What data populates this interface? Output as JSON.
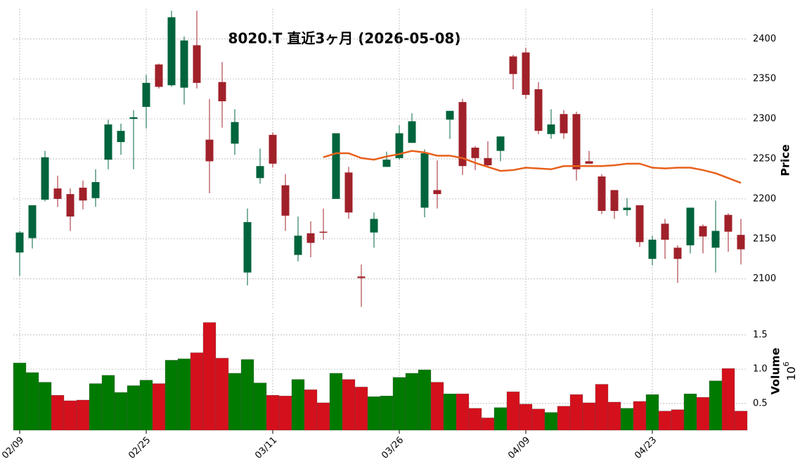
{
  "chart_data": [
    {
      "type": "candlestick",
      "title": "8020.T 直近3ヶ月 (2026-05-08)",
      "ylabel": "Price",
      "categories": [
        "02/09",
        null,
        null,
        null,
        null,
        null,
        null,
        null,
        null,
        null,
        "02/25",
        null,
        null,
        null,
        null,
        null,
        null,
        null,
        null,
        null,
        "03/11",
        null,
        null,
        null,
        null,
        null,
        null,
        null,
        null,
        null,
        "03/26",
        null,
        null,
        null,
        null,
        null,
        null,
        null,
        null,
        null,
        "04/09",
        null,
        null,
        null,
        null,
        null,
        null,
        null,
        null,
        null,
        "04/23",
        null,
        null,
        null,
        null,
        null,
        null,
        null
      ],
      "open": [
        2133,
        2151,
        2199,
        2213,
        2206,
        2214,
        2201,
        2249,
        2271,
        2300,
        2315,
        2368,
        2342,
        2339,
        2392,
        2274,
        2346,
        2269,
        2108,
        2226,
        2280,
        2217,
        2130,
        2157,
        2159,
        2200,
        2233,
        2103,
        2158,
        2240,
        2251,
        2270,
        2189,
        2211,
        2299,
        2321,
        2264,
        2251,
        2260,
        2378,
        2383,
        2337,
        2281,
        2306,
        2306,
        2247,
        2228,
        2211,
        2186,
        2192,
        2125,
        2169,
        2139,
        2142,
        2166,
        2139,
        2180,
        2155
      ],
      "high": [
        2160,
        2192,
        2260,
        2229,
        2213,
        2223,
        2237,
        2299,
        2294,
        2311,
        2355,
        2369,
        2435,
        2403,
        2435,
        2325,
        2371,
        2312,
        2188,
        2263,
        2283,
        2231,
        2178,
        2172,
        2188,
        2282,
        2240,
        2118,
        2183,
        2259,
        2292,
        2307,
        2262,
        2248,
        2310,
        2325,
        2266,
        2272,
        2278,
        2380,
        2389,
        2346,
        2312,
        2311,
        2309,
        2260,
        2231,
        2211,
        2201,
        2192,
        2154,
        2175,
        2142,
        2189,
        2168,
        2198,
        2182,
        2175
      ],
      "low": [
        2104,
        2138,
        2197,
        2190,
        2160,
        2187,
        2190,
        2237,
        2255,
        2237,
        2288,
        2338,
        2340,
        2318,
        2338,
        2207,
        2289,
        2255,
        2092,
        2219,
        2239,
        2160,
        2122,
        2127,
        2149,
        2200,
        2175,
        2065,
        2139,
        2240,
        2249,
        2270,
        2177,
        2188,
        2275,
        2230,
        2236,
        2239,
        2247,
        2337,
        2325,
        2281,
        2275,
        2275,
        2223,
        2244,
        2181,
        2175,
        2179,
        2140,
        2117,
        2125,
        2095,
        2132,
        2132,
        2108,
        2134,
        2118
      ],
      "close": [
        2158,
        2192,
        2252,
        2200,
        2178,
        2198,
        2221,
        2293,
        2285,
        2302,
        2345,
        2340,
        2427,
        2398,
        2345,
        2247,
        2322,
        2296,
        2171,
        2241,
        2244,
        2179,
        2154,
        2145,
        2158,
        2282,
        2183,
        2101,
        2175,
        2249,
        2282,
        2297,
        2257,
        2206,
        2310,
        2241,
        2251,
        2242,
        2278,
        2356,
        2330,
        2285,
        2293,
        2282,
        2237,
        2244,
        2185,
        2185,
        2189,
        2146,
        2149,
        2149,
        2125,
        2189,
        2153,
        2160,
        2159,
        2137
      ],
      "up_color": "#00643c",
      "down_color": "#a0212a",
      "series": [
        {
          "color": "#e8601c",
          "values": [
            null,
            null,
            null,
            null,
            null,
            null,
            null,
            null,
            null,
            null,
            null,
            null,
            null,
            null,
            null,
            null,
            null,
            null,
            null,
            null,
            null,
            null,
            null,
            null,
            2252,
            2257,
            2257,
            2251,
            2249,
            2253,
            2256,
            2260,
            2258,
            2254,
            2254,
            2251,
            2245,
            2240,
            2235,
            2236,
            2239,
            2238,
            2237,
            2241,
            2241,
            2241,
            2241,
            2242,
            2244,
            2244,
            2239,
            2238,
            2239,
            2239,
            2236,
            2232,
            2226,
            2220
          ]
        }
      ],
      "ylim": [
        2062,
        2438
      ],
      "yticks": [
        2100,
        2150,
        2200,
        2250,
        2300,
        2350,
        2400
      ],
      "grid": true
    },
    {
      "type": "volume",
      "ylabel": "Volume",
      "exponent_base": 10,
      "exponent_power": 6,
      "values": [
        1.09,
        0.95,
        0.81,
        0.62,
        0.54,
        0.55,
        0.79,
        0.91,
        0.66,
        0.76,
        0.84,
        0.79,
        1.13,
        1.15,
        1.24,
        1.68,
        1.16,
        0.94,
        1.14,
        0.8,
        0.62,
        0.61,
        0.85,
        0.7,
        0.51,
        0.94,
        0.85,
        0.74,
        0.6,
        0.61,
        0.88,
        0.94,
        0.99,
        0.81,
        0.64,
        0.64,
        0.43,
        0.29,
        0.44,
        0.67,
        0.49,
        0.42,
        0.37,
        0.46,
        0.63,
        0.51,
        0.78,
        0.52,
        0.43,
        0.53,
        0.63,
        0.39,
        0.41,
        0.64,
        0.59,
        0.83,
        1.01,
        0.39
      ],
      "up_color": "#007a00",
      "down_color": "#d4101c",
      "ylim": [
        0.11,
        1.82
      ],
      "yticks": [
        0.5,
        {
          "value": 1,
          "label": "1.0"
        },
        1.5
      ],
      "grid": true
    }
  ]
}
